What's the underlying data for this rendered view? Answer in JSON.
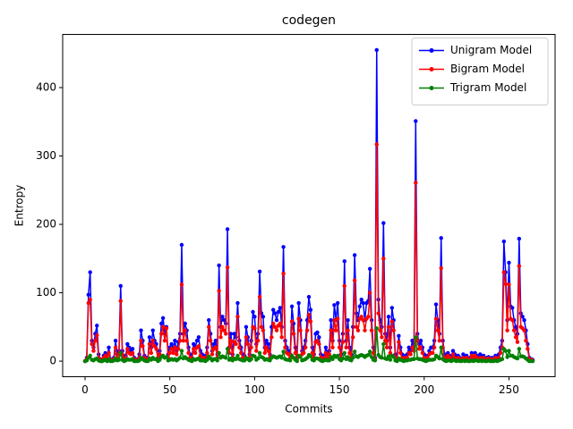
{
  "chart_data": {
    "type": "line",
    "title": "codegen",
    "x_label": "Commits",
    "y_label": "Entropy",
    "xlim": [
      -13.2,
      277.2
    ],
    "xticks": [
      0,
      50,
      100,
      150,
      200,
      250
    ],
    "ylim": [
      -22.75,
      477.75
    ],
    "yticks": [
      0,
      100,
      200,
      300,
      400
    ],
    "grid": false,
    "legend": "upper right",
    "series": [
      {
        "name": "Unigram Model",
        "color": "#0000ff",
        "values": [
          0,
          5,
          97,
          130,
          30,
          20,
          40,
          52,
          10,
          3,
          0,
          8,
          12,
          5,
          20,
          3,
          2,
          5,
          30,
          10,
          15,
          110,
          15,
          5,
          8,
          25,
          20,
          15,
          18,
          5,
          2,
          3,
          10,
          45,
          30,
          8,
          5,
          2,
          35,
          20,
          45,
          30,
          25,
          5,
          15,
          55,
          63,
          40,
          50,
          10,
          20,
          25,
          18,
          30,
          15,
          28,
          40,
          170,
          40,
          55,
          45,
          20,
          10,
          5,
          25,
          20,
          30,
          35,
          15,
          10,
          8,
          5,
          20,
          60,
          40,
          15,
          25,
          30,
          10,
          140,
          50,
          65,
          60,
          55,
          193,
          20,
          40,
          10,
          40,
          35,
          85,
          30,
          20,
          10,
          8,
          50,
          35,
          10,
          30,
          72,
          65,
          25,
          40,
          131,
          70,
          65,
          20,
          30,
          25,
          10,
          50,
          75,
          70,
          60,
          72,
          78,
          50,
          167,
          30,
          20,
          15,
          10,
          80,
          55,
          20,
          5,
          85,
          60,
          15,
          20,
          30,
          60,
          94,
          75,
          20,
          10,
          40,
          42,
          35,
          10,
          5,
          8,
          20,
          10,
          15,
          60,
          30,
          82,
          60,
          85,
          30,
          10,
          40,
          146,
          30,
          60,
          20,
          10,
          50,
          155,
          70,
          60,
          80,
          90,
          85,
          60,
          85,
          88,
          135,
          60,
          20,
          5,
          455,
          90,
          60,
          50,
          202,
          40,
          30,
          65,
          20,
          78,
          60,
          10,
          5,
          37,
          20,
          10,
          5,
          8,
          10,
          20,
          15,
          30,
          25,
          351,
          40,
          25,
          30,
          20,
          10,
          5,
          8,
          15,
          20,
          20,
          30,
          83,
          60,
          40,
          180,
          30,
          10,
          5,
          12,
          8,
          5,
          15,
          10,
          5,
          8,
          5,
          3,
          10,
          5,
          8,
          3,
          5,
          12,
          5,
          12,
          8,
          5,
          10,
          5,
          8,
          3,
          5,
          6,
          4,
          5,
          3,
          8,
          5,
          10,
          20,
          30,
          175,
          130,
          60,
          144,
          80,
          78,
          60,
          50,
          40,
          179,
          70,
          65,
          60,
          45,
          25,
          5,
          3,
          2
        ]
      },
      {
        "name": "Bigram Model",
        "color": "#ff0000",
        "values": [
          0,
          3,
          85,
          90,
          25,
          15,
          30,
          38,
          5,
          2,
          0,
          5,
          8,
          3,
          12,
          2,
          1,
          3,
          20,
          5,
          10,
          88,
          10,
          3,
          5,
          18,
          12,
          10,
          12,
          3,
          1,
          2,
          5,
          30,
          22,
          5,
          3,
          1,
          25,
          12,
          30,
          22,
          18,
          3,
          10,
          40,
          50,
          30,
          48,
          5,
          12,
          18,
          12,
          20,
          10,
          18,
          30,
          112,
          30,
          45,
          30,
          12,
          5,
          3,
          18,
          12,
          20,
          22,
          8,
          5,
          5,
          3,
          12,
          50,
          30,
          10,
          18,
          20,
          5,
          103,
          35,
          50,
          45,
          40,
          137,
          12,
          30,
          5,
          28,
          25,
          65,
          20,
          12,
          5,
          5,
          35,
          25,
          5,
          20,
          50,
          48,
          15,
          30,
          94,
          50,
          45,
          12,
          20,
          15,
          5,
          35,
          55,
          50,
          45,
          52,
          55,
          35,
          128,
          20,
          12,
          10,
          5,
          58,
          40,
          12,
          3,
          62,
          45,
          10,
          12,
          20,
          45,
          68,
          58,
          12,
          5,
          28,
          30,
          25,
          5,
          3,
          5,
          12,
          5,
          10,
          45,
          20,
          60,
          45,
          62,
          20,
          5,
          28,
          110,
          20,
          45,
          12,
          5,
          35,
          118,
          50,
          45,
          62,
          65,
          60,
          45,
          62,
          65,
          100,
          45,
          12,
          3,
          317,
          70,
          45,
          35,
          150,
          30,
          20,
          50,
          12,
          58,
          45,
          5,
          3,
          28,
          12,
          5,
          3,
          5,
          5,
          12,
          10,
          20,
          15,
          261,
          30,
          18,
          20,
          12,
          5,
          3,
          5,
          10,
          12,
          12,
          20,
          62,
          45,
          30,
          136,
          20,
          5,
          3,
          8,
          5,
          3,
          10,
          5,
          3,
          5,
          3,
          2,
          5,
          3,
          5,
          2,
          3,
          8,
          3,
          8,
          5,
          3,
          5,
          3,
          5,
          2,
          3,
          4,
          2,
          3,
          2,
          5,
          3,
          5,
          12,
          20,
          130,
          113,
          45,
          112,
          62,
          60,
          45,
          35,
          28,
          139,
          50,
          48,
          45,
          30,
          18,
          3,
          2,
          1
        ]
      },
      {
        "name": "Trigram Model",
        "color": "#008000",
        "values": [
          0,
          1,
          5,
          8,
          2,
          1,
          3,
          4,
          1,
          0,
          0,
          1,
          2,
          0,
          3,
          0,
          0,
          1,
          4,
          1,
          2,
          12,
          2,
          0,
          1,
          3,
          2,
          2,
          3,
          0,
          0,
          0,
          1,
          5,
          3,
          1,
          0,
          0,
          4,
          2,
          5,
          3,
          3,
          0,
          2,
          6,
          8,
          5,
          6,
          1,
          2,
          3,
          2,
          3,
          1,
          3,
          5,
          15,
          4,
          6,
          4,
          2,
          1,
          0,
          3,
          2,
          3,
          4,
          1,
          1,
          1,
          0,
          2,
          7,
          4,
          1,
          3,
          3,
          1,
          12,
          5,
          7,
          6,
          5,
          18,
          2,
          4,
          1,
          4,
          3,
          8,
          3,
          2,
          1,
          1,
          5,
          3,
          1,
          3,
          8,
          7,
          2,
          4,
          12,
          6,
          5,
          2,
          3,
          2,
          1,
          5,
          7,
          6,
          5,
          6,
          7,
          5,
          14,
          3,
          2,
          2,
          1,
          8,
          5,
          2,
          0,
          8,
          6,
          1,
          2,
          3,
          5,
          9,
          7,
          2,
          1,
          4,
          4,
          3,
          1,
          0,
          1,
          2,
          1,
          1,
          6,
          3,
          8,
          6,
          8,
          3,
          1,
          4,
          12,
          3,
          6,
          2,
          1,
          5,
          14,
          7,
          6,
          8,
          9,
          8,
          6,
          8,
          9,
          14,
          6,
          2,
          1,
          48,
          9,
          6,
          5,
          25,
          4,
          3,
          7,
          2,
          8,
          6,
          1,
          0,
          4,
          2,
          1,
          0,
          1,
          1,
          2,
          2,
          3,
          3,
          35,
          4,
          3,
          3,
          2,
          1,
          0,
          1,
          2,
          2,
          2,
          3,
          8,
          6,
          4,
          20,
          3,
          1,
          0,
          1,
          1,
          0,
          2,
          1,
          0,
          1,
          0,
          0,
          1,
          0,
          1,
          0,
          0,
          1,
          0,
          1,
          1,
          0,
          1,
          0,
          1,
          0,
          0,
          1,
          0,
          0,
          0,
          1,
          0,
          1,
          2,
          3,
          18,
          15,
          6,
          15,
          8,
          8,
          6,
          5,
          4,
          18,
          7,
          7,
          6,
          4,
          2,
          0,
          0,
          0
        ]
      }
    ]
  }
}
